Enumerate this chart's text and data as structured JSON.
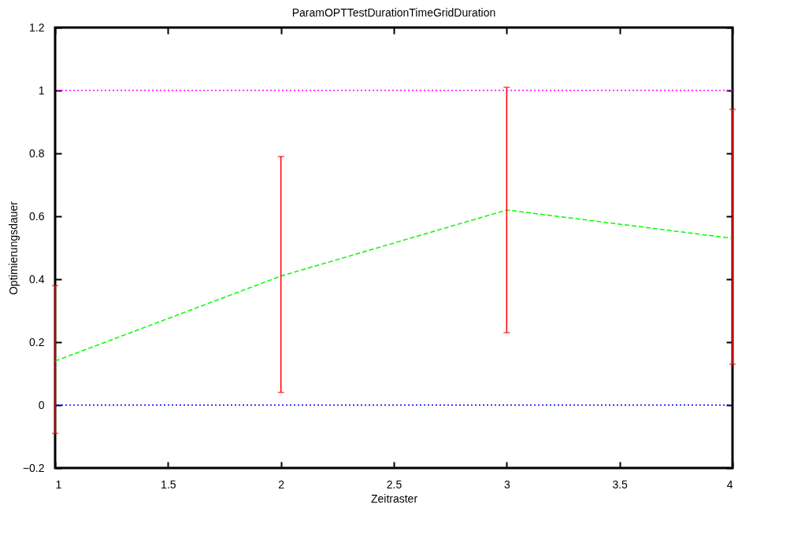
{
  "chart_data": {
    "type": "line",
    "title": "ParamOPTTestDurationTimeGridDuration",
    "xlabel": "Zeitraster",
    "ylabel": "Optimierungsdauer",
    "x": [
      1,
      2,
      3,
      4
    ],
    "series": [
      {
        "color": "#00ff00",
        "values": [
          0.14,
          0.41,
          0.62,
          0.53
        ],
        "errors": [
          [
            -0.09,
            0.38
          ],
          [
            0.04,
            0.79
          ],
          [
            0.23,
            1.01
          ],
          [
            0.13,
            0.94
          ]
        ]
      }
    ],
    "xlim": [
      1,
      4
    ],
    "xticks": [
      1,
      1.5,
      2,
      2.5,
      3,
      3.5,
      4
    ],
    "ylim": [
      -0.2,
      1.2
    ],
    "yticks": [
      -0.2,
      0,
      0.2,
      0.4,
      0.6,
      0.8,
      1,
      1.2
    ],
    "ref_lines": [
      {
        "axis": "y",
        "value": 1,
        "color": "#ff00ff",
        "line_style": "dotted"
      },
      {
        "axis": "y",
        "value": 0,
        "color": "#0000ff",
        "line_style": "dotted"
      }
    ],
    "line_style": "dashed",
    "marker": "none",
    "grid": false
  }
}
